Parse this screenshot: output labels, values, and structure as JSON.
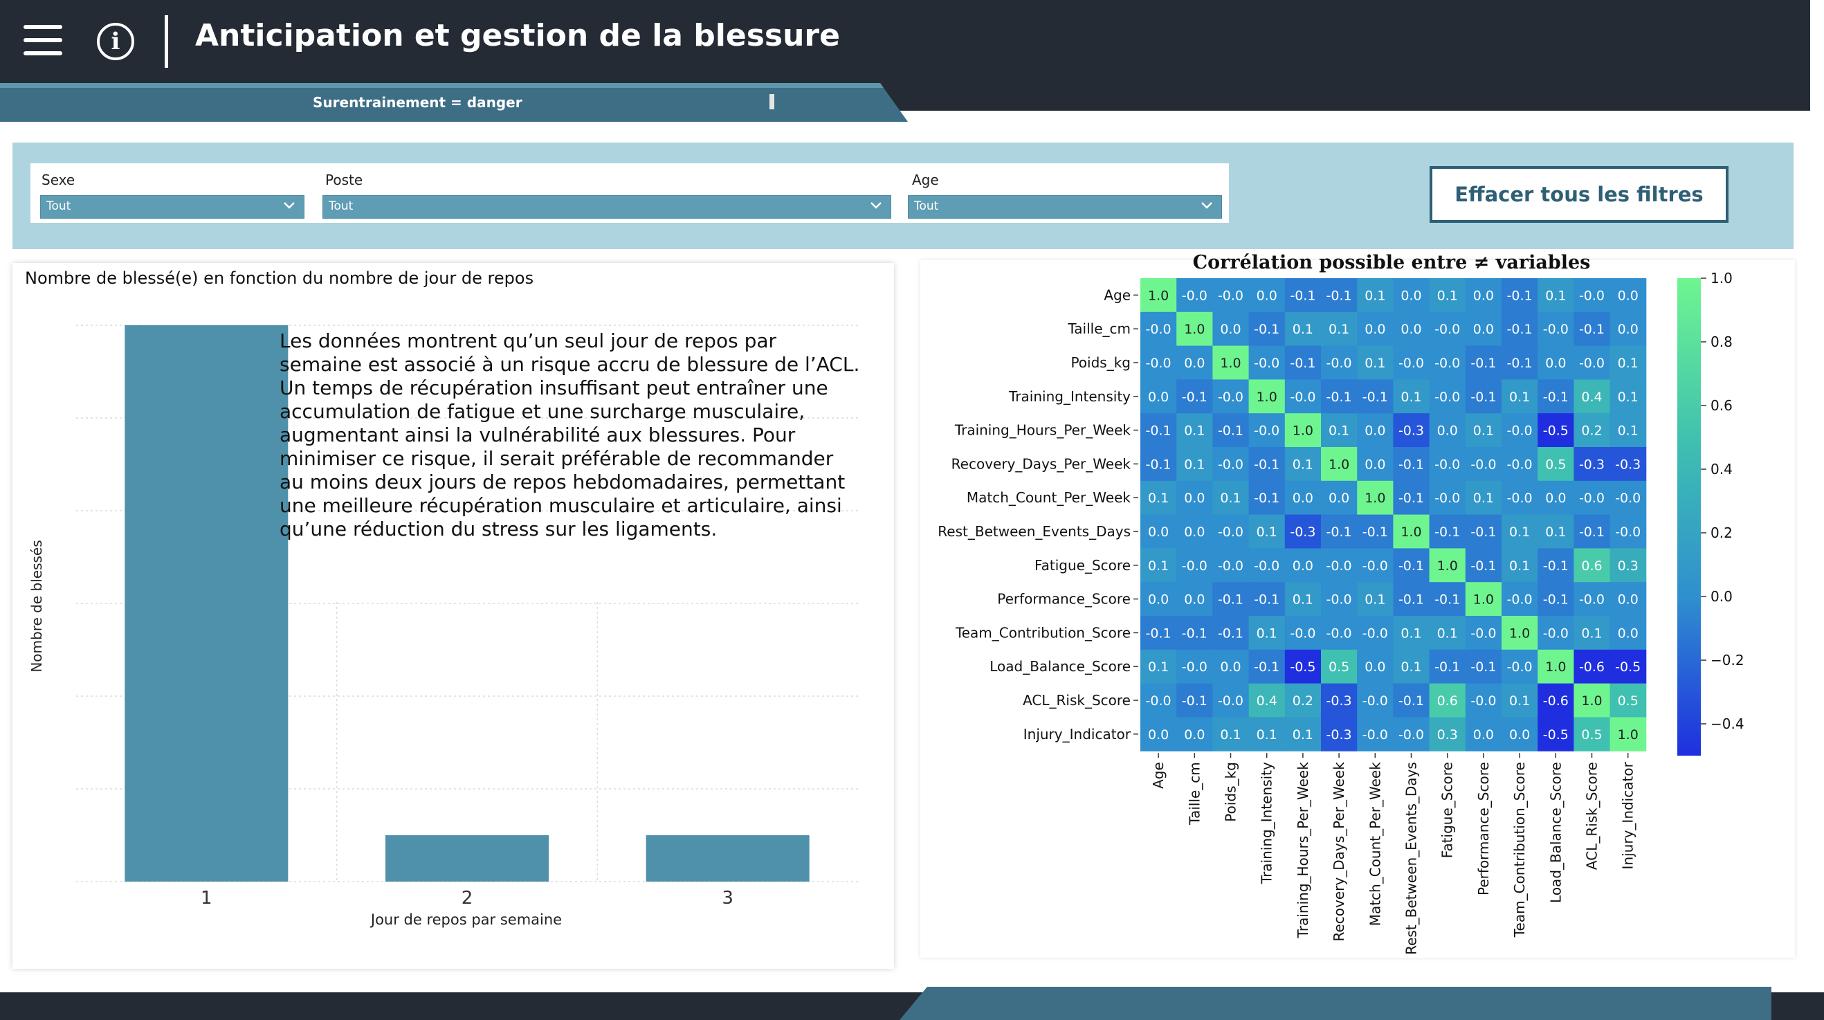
{
  "header": {
    "title": "Anticipation et gestion de la blessure",
    "subbanner_text": "Surentrainement = danger",
    "menu_icon": "hamburger-menu-icon",
    "info_icon": "info-icon",
    "colors": {
      "header_bg": "#242b35",
      "banner": "#3d6e85",
      "accent": "#4f90aa"
    }
  },
  "filters": {
    "items": [
      {
        "label": "Sexe",
        "value": "Tout"
      },
      {
        "label": "Poste",
        "value": "Tout"
      },
      {
        "label": "Age",
        "value": "Tout"
      }
    ],
    "clear_button_label": "Effacer tous les filtres"
  },
  "bar_panel": {
    "title": "Nombre de blessé(e) en fonction du nombre de jour de repos",
    "insight": "Les données montrent qu’un seul jour de repos par semaine est associé à un risque accru de blessure de l’ACL. Un temps de récupération insuffisant peut entraîner une accumulation de fatigue et une surcharge musculaire, augmentant ainsi la vulnérabilité aux blessures. Pour minimiser ce risque, il serait préférable de recommander au moins deux jours de repos hebdomadaires, permettant une meilleure récupération musculaire et articulaire, ainsi qu’une réduction du stress sur les ligaments."
  },
  "chart_data": [
    {
      "type": "bar",
      "title": "Nombre de blessé(e) en fonction du nombre de jour de repos",
      "xlabel": "Jour de repos par semaine",
      "ylabel": "Nombre de blessés",
      "categories": [
        "1",
        "2",
        "3"
      ],
      "values": [
        12,
        1,
        1
      ],
      "ylim": [
        0,
        12
      ],
      "grid": true,
      "color": "#4f90aa"
    },
    {
      "type": "heatmap",
      "title": "Corrélation possible entre ≠ variables",
      "labels": [
        "Age",
        "Taille_cm",
        "Poids_kg",
        "Training_Intensity",
        "Training_Hours_Per_Week",
        "Recovery_Days_Per_Week",
        "Match_Count_Per_Week",
        "Rest_Between_Events_Days",
        "Fatigue_Score",
        "Performance_Score",
        "Team_Contribution_Score",
        "Load_Balance_Score",
        "ACL_Risk_Score",
        "Injury_Indicator"
      ],
      "matrix": [
        [
          "1.0",
          "-0.0",
          "-0.0",
          "0.0",
          "-0.1",
          "-0.1",
          "0.1",
          "0.0",
          "0.1",
          "0.0",
          "-0.1",
          "0.1",
          "-0.0",
          "0.0"
        ],
        [
          "-0.0",
          "1.0",
          "0.0",
          "-0.1",
          "0.1",
          "0.1",
          "0.0",
          "0.0",
          "-0.0",
          "0.0",
          "-0.1",
          "-0.0",
          "-0.1",
          "0.0"
        ],
        [
          "-0.0",
          "0.0",
          "1.0",
          "-0.0",
          "-0.1",
          "-0.0",
          "0.1",
          "-0.0",
          "-0.0",
          "-0.1",
          "-0.1",
          "0.0",
          "-0.0",
          "0.1"
        ],
        [
          "0.0",
          "-0.1",
          "-0.0",
          "1.0",
          "-0.0",
          "-0.1",
          "-0.1",
          "0.1",
          "-0.0",
          "-0.1",
          "0.1",
          "-0.1",
          "0.4",
          "0.1"
        ],
        [
          "-0.1",
          "0.1",
          "-0.1",
          "-0.0",
          "1.0",
          "0.1",
          "0.0",
          "-0.3",
          "0.0",
          "0.1",
          "-0.0",
          "-0.5",
          "0.2",
          "0.1"
        ],
        [
          "-0.1",
          "0.1",
          "-0.0",
          "-0.1",
          "0.1",
          "1.0",
          "0.0",
          "-0.1",
          "-0.0",
          "-0.0",
          "-0.0",
          "0.5",
          "-0.3",
          "-0.3"
        ],
        [
          "0.1",
          "0.0",
          "0.1",
          "-0.1",
          "0.0",
          "0.0",
          "1.0",
          "-0.1",
          "-0.0",
          "0.1",
          "-0.0",
          "0.0",
          "-0.0",
          "-0.0"
        ],
        [
          "0.0",
          "0.0",
          "-0.0",
          "0.1",
          "-0.3",
          "-0.1",
          "-0.1",
          "1.0",
          "-0.1",
          "-0.1",
          "0.1",
          "0.1",
          "-0.1",
          "-0.0"
        ],
        [
          "0.1",
          "-0.0",
          "-0.0",
          "-0.0",
          "0.0",
          "-0.0",
          "-0.0",
          "-0.1",
          "1.0",
          "-0.1",
          "0.1",
          "-0.1",
          "0.6",
          "0.3"
        ],
        [
          "0.0",
          "0.0",
          "-0.1",
          "-0.1",
          "0.1",
          "-0.0",
          "0.1",
          "-0.1",
          "-0.1",
          "1.0",
          "-0.0",
          "-0.1",
          "-0.0",
          "0.0"
        ],
        [
          "-0.1",
          "-0.1",
          "-0.1",
          "0.1",
          "-0.0",
          "-0.0",
          "-0.0",
          "0.1",
          "0.1",
          "-0.0",
          "1.0",
          "-0.0",
          "0.1",
          "0.0"
        ],
        [
          "0.1",
          "-0.0",
          "0.0",
          "-0.1",
          "-0.5",
          "0.5",
          "0.0",
          "0.1",
          "-0.1",
          "-0.1",
          "-0.0",
          "1.0",
          "-0.6",
          "-0.5"
        ],
        [
          "-0.0",
          "-0.1",
          "-0.0",
          "0.4",
          "0.2",
          "-0.3",
          "-0.0",
          "-0.1",
          "0.6",
          "-0.0",
          "0.1",
          "-0.6",
          "1.0",
          "0.5"
        ],
        [
          "0.0",
          "0.0",
          "0.1",
          "0.1",
          "0.1",
          "-0.3",
          "-0.0",
          "-0.0",
          "0.3",
          "0.0",
          "0.0",
          "-0.5",
          "0.5",
          "1.0"
        ]
      ],
      "colorbar": {
        "min": -0.5,
        "max": 1.0,
        "ticks": [
          "1.0",
          "0.8",
          "0.6",
          "0.4",
          "0.2",
          "0.0",
          "−0.2",
          "−0.4"
        ],
        "tick_values": [
          1.0,
          0.8,
          0.6,
          0.4,
          0.2,
          0.0,
          -0.2,
          -0.4
        ]
      },
      "colormap": [
        "#1f2fe0",
        "#2f8fcf",
        "#3fc0b0",
        "#6ff590"
      ]
    }
  ]
}
